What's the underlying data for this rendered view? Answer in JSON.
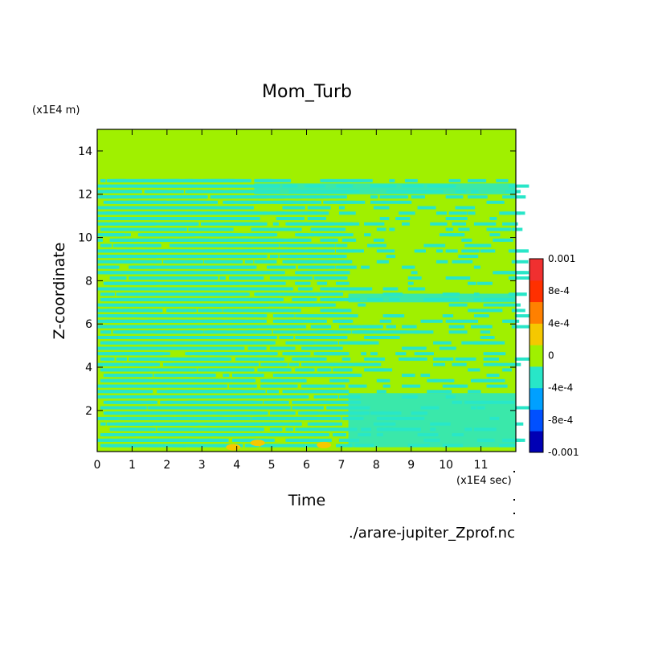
{
  "chart_data": {
    "type": "heatmap",
    "title": "Mom_Turb",
    "xlabel": "Time",
    "ylabel": "Z-coordinate",
    "x_unit_label": "(x1E4 sec)",
    "y_unit_label": "(x1E4 m)",
    "xlim": [
      0,
      12
    ],
    "ylim": [
      0.1,
      15
    ],
    "x_ticks": [
      "0",
      "1",
      "2",
      "3",
      "4",
      "5",
      "6",
      "7",
      "8",
      "9",
      "10",
      "11"
    ],
    "y_ticks": [
      "2",
      "4",
      "6",
      "8",
      "10",
      "12",
      "14"
    ],
    "colorbar": {
      "min": -0.001,
      "max": 0.001,
      "tick_labels": [
        "0.001",
        "8e-4",
        "4e-4",
        "0",
        "-4e-4",
        "-8e-4",
        "-0.001"
      ],
      "colors": [
        "#0000b4",
        "#0050ff",
        "#00a0ff",
        "#28e6c8",
        "#a0f000",
        "#f5c800",
        "#ff8000",
        "#ff3000",
        "#f03030"
      ]
    },
    "background_level_color": "#a0f000",
    "field_description": "Dominant value near 0; alternating small negative streaks (-1e-4 to -4e-4) across z 0.1-12.5 for t 0-7, fading later; weak positive patches near z<1 around t 4.5-7"
  },
  "footer": {
    "filename": "./arare-jupiter_Zprof.nc"
  }
}
